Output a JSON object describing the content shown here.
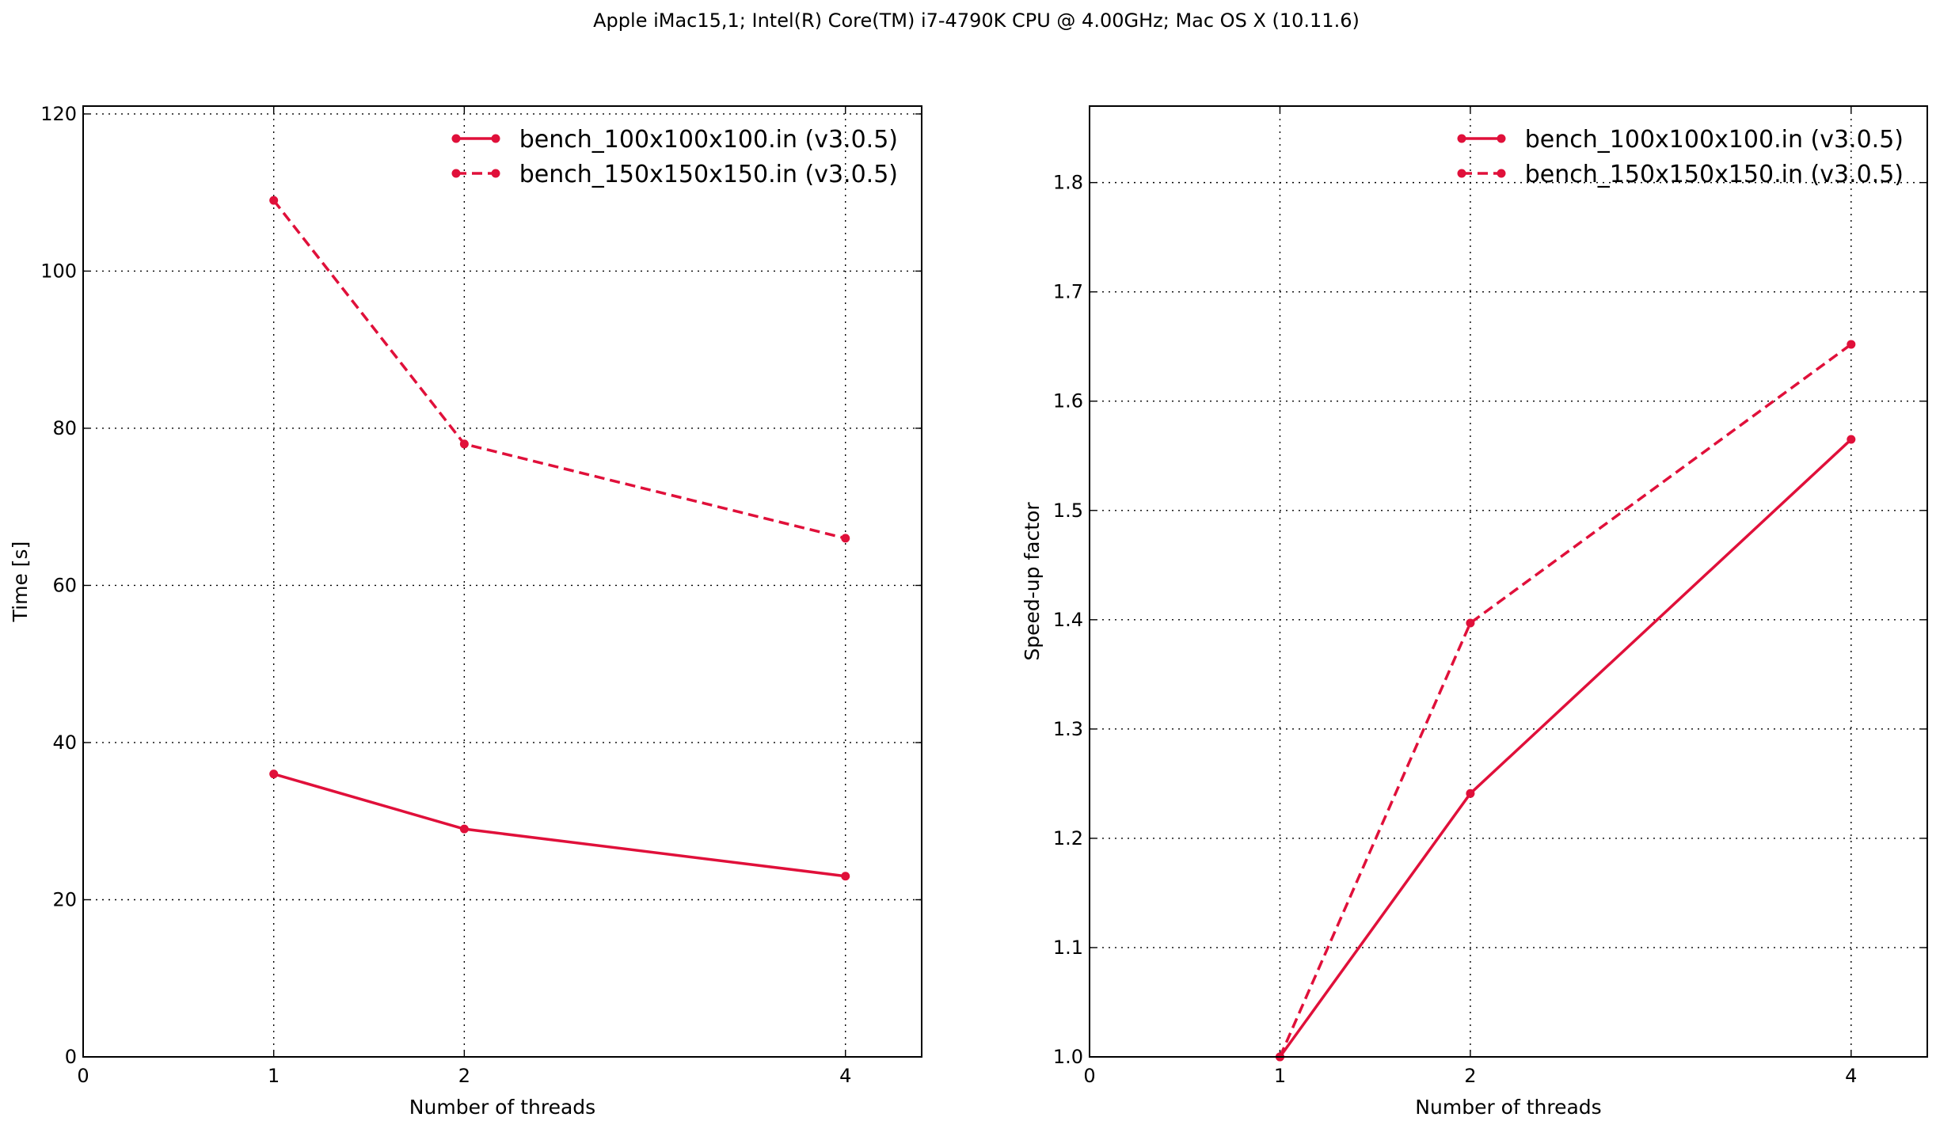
{
  "suptitle": "Apple iMac15,1; Intel(R) Core(TM) i7-4790K CPU @ 4.00GHz; Mac OS X (10.11.6)",
  "colors": {
    "series": "#e0103a",
    "grid": "#000000",
    "background": "#ffffff"
  },
  "chart_data": [
    {
      "type": "line",
      "title": "",
      "xlabel": "Number of threads",
      "ylabel": "Time [s]",
      "xlim": [
        0,
        4.4
      ],
      "ylim": [
        0,
        121
      ],
      "xticks": [
        0,
        1,
        2,
        4
      ],
      "yticks": [
        0,
        20,
        40,
        60,
        80,
        100,
        120
      ],
      "ytick_decimals": 0,
      "grid": true,
      "legend_position": "top-right",
      "series": [
        {
          "name": "bench_100x100x100.in (v3.0.5)",
          "style": "solid",
          "x": [
            1,
            2,
            4
          ],
          "y": [
            36,
            29,
            23
          ]
        },
        {
          "name": "bench_150x150x150.in (v3.0.5)",
          "style": "dashed",
          "x": [
            1,
            2,
            4
          ],
          "y": [
            109,
            78,
            66
          ]
        }
      ]
    },
    {
      "type": "line",
      "title": "",
      "xlabel": "Number of threads",
      "ylabel": "Speed-up factor",
      "xlim": [
        0,
        4.4
      ],
      "ylim": [
        1.0,
        1.87
      ],
      "xticks": [
        0,
        1,
        2,
        4
      ],
      "yticks": [
        1.0,
        1.1,
        1.2,
        1.3,
        1.4,
        1.5,
        1.6,
        1.7,
        1.8
      ],
      "ytick_decimals": 1,
      "grid": true,
      "legend_position": "top-right",
      "series": [
        {
          "name": "bench_100x100x100.in (v3.0.5)",
          "style": "solid",
          "x": [
            1,
            2,
            4
          ],
          "y": [
            1.0,
            1.241,
            1.565
          ]
        },
        {
          "name": "bench_150x150x150.in (v3.0.5)",
          "style": "dashed",
          "x": [
            1,
            2,
            4
          ],
          "y": [
            1.0,
            1.397,
            1.652
          ]
        }
      ]
    }
  ]
}
